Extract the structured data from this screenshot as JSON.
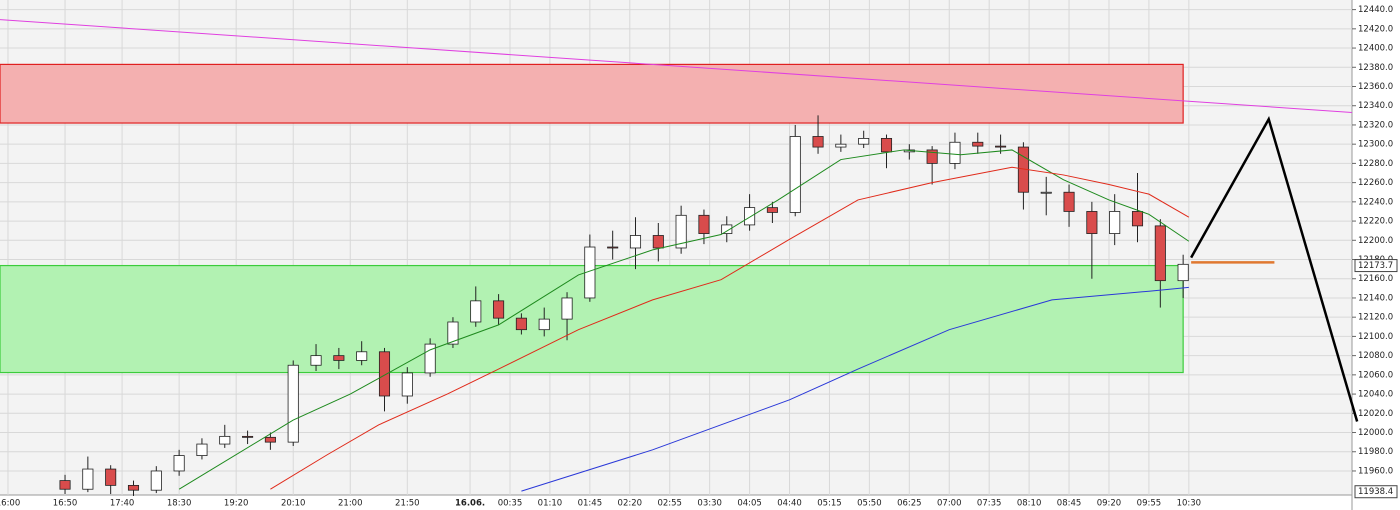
{
  "chart_data": {
    "type": "candlestick",
    "x": [
      10,
      14,
      18,
      22,
      26,
      30,
      34,
      38,
      42,
      46,
      50,
      54,
      58,
      62,
      66,
      70,
      74,
      78,
      82,
      86,
      90,
      94,
      98,
      102,
      106,
      110,
      114,
      118,
      122,
      126,
      130,
      134,
      138,
      142,
      146,
      150,
      154,
      158,
      162,
      166,
      170,
      174,
      178,
      182,
      186,
      190,
      194,
      198,
      202,
      206
    ],
    "open": [
      11950,
      11941,
      11962,
      11945,
      11940,
      11960,
      11976,
      11988,
      11996,
      11995,
      11990,
      12070,
      12080,
      12075,
      12084,
      12038,
      12062,
      12092,
      12115,
      12137,
      12119,
      12107,
      12118,
      12140,
      12193,
      12192,
      12205,
      12192,
      12226,
      12207,
      12216,
      12234,
      12229,
      12308,
      12297,
      12300,
      12306,
      12292,
      12294,
      12280,
      12302,
      12298,
      12297,
      12250,
      12250,
      12230,
      12207,
      12230,
      12215,
      12158
    ],
    "high": [
      11956,
      11975,
      11966,
      11950,
      11965,
      11982,
      11994,
      12008,
      12002,
      12000,
      12075,
      12092,
      12088,
      12095,
      12088,
      12068,
      12098,
      12120,
      12152,
      12144,
      12124,
      12130,
      12146,
      12206,
      12210,
      12224,
      12218,
      12236,
      12232,
      12225,
      12248,
      12240,
      12320,
      12330,
      12310,
      12314,
      12310,
      12300,
      12298,
      12312,
      12312,
      12310,
      12302,
      12266,
      12258,
      12240,
      12248,
      12270,
      12222,
      12185
    ],
    "low": [
      11936,
      11938,
      11936,
      11934,
      11937,
      11955,
      11972,
      11984,
      11988,
      11982,
      11986,
      12064,
      12066,
      12070,
      12022,
      12030,
      12058,
      12088,
      12110,
      12112,
      12102,
      12100,
      12096,
      12136,
      12180,
      12170,
      12178,
      12186,
      12196,
      12198,
      12210,
      12218,
      12225,
      12290,
      12292,
      12296,
      12275,
      12284,
      12258,
      12274,
      12290,
      12290,
      12232,
      12226,
      12214,
      12160,
      12195,
      12198,
      12130,
      12140
    ],
    "close": [
      11941,
      11962,
      11945,
      11940,
      11960,
      11976,
      11988,
      11996,
      11995,
      11990,
      12070,
      12080,
      12075,
      12084,
      12038,
      12062,
      12092,
      12115,
      12137,
      12119,
      12107,
      12118,
      12140,
      12193,
      12192,
      12205,
      12192,
      12226,
      12207,
      12216,
      12234,
      12229,
      12308,
      12297,
      12300,
      12306,
      12292,
      12294,
      12280,
      12302,
      12298,
      12297,
      12250,
      12250,
      12230,
      12207,
      12230,
      12215,
      12158,
      12175
    ],
    "up_color": "#ffffff",
    "down_color": "#d94c4c",
    "zones": [
      {
        "low": 12322,
        "high": 12383,
        "x_end": 206,
        "color": "#f4b0b0",
        "edge": "#e02020"
      },
      {
        "low": 12062.4,
        "high": 12173.7,
        "x_end": 206,
        "color": "#b2f2b2",
        "edge": "#3ccc3c"
      }
    ],
    "lines": [
      {
        "color": "#1e8a1e",
        "x": [
          30,
          50,
          60,
          74,
          86,
          100,
          113,
          125,
          135,
          146,
          157,
          167,
          176,
          185,
          193,
          200,
          207
        ],
        "values": [
          11941,
          12013,
          12040,
          12086,
          12112,
          12164,
          12190,
          12206,
          12242,
          12284,
          12294,
          12289,
          12294,
          12263,
          12242,
          12227,
          12199
        ]
      },
      {
        "color": "#e02a1a",
        "x": [
          46,
          56,
          65,
          77,
          86,
          100,
          113,
          125,
          137,
          149,
          162,
          176,
          185,
          193,
          200,
          207
        ],
        "values": [
          11941,
          11977,
          12008,
          12040,
          12066,
          12107,
          12138,
          12159,
          12201,
          12242,
          12260,
          12276,
          12268,
          12258,
          12248,
          12224
        ]
      },
      {
        "color": "#2a38d8",
        "x": [
          90,
          113,
          137,
          149,
          165,
          183,
          200,
          207
        ],
        "values": [
          11939,
          11982,
          12034,
          12066,
          12107,
          12138,
          12147,
          12151
        ]
      },
      {
        "color": "#e040e0",
        "x": [
          -1.4,
          235.6
        ],
        "values": [
          12429.6,
          12333
        ]
      },
      {
        "color": "#000000",
        "x": [
          207.4,
          221,
          236.5
        ],
        "values": [
          12182,
          12326,
          12011.5
        ]
      },
      {
        "color": "#e07830",
        "x": [
          207.4,
          222
        ],
        "values": [
          12177,
          12177
        ]
      }
    ],
    "price_markers": [
      12173.7,
      11938.4
    ],
    "xlim": [
      -1.4,
      235.6
    ],
    "xticks": [
      {
        "value": 0,
        "label": "16:00"
      },
      {
        "value": 10,
        "label": "16:50"
      },
      {
        "value": 20,
        "label": "17:40"
      },
      {
        "value": 30,
        "label": "18:30"
      },
      {
        "value": 40,
        "label": "19:20"
      },
      {
        "value": 50,
        "label": "20:10"
      },
      {
        "value": 60,
        "label": "21:00"
      },
      {
        "value": 70,
        "label": "21:50"
      },
      {
        "value": 81,
        "label": "16.06."
      },
      {
        "value": 88,
        "label": "00:35"
      },
      {
        "value": 95,
        "label": "01:10"
      },
      {
        "value": 102,
        "label": "01:45"
      },
      {
        "value": 109,
        "label": "02:20"
      },
      {
        "value": 116,
        "label": "02:55"
      },
      {
        "value": 123,
        "label": "03:30"
      },
      {
        "value": 130,
        "label": "04:05"
      },
      {
        "value": 137,
        "label": "04:40"
      },
      {
        "value": 144,
        "label": "05:15"
      },
      {
        "value": 151,
        "label": "05:50"
      },
      {
        "value": 158,
        "label": "06:25"
      },
      {
        "value": 165,
        "label": "07:00"
      },
      {
        "value": 172,
        "label": "07:35"
      },
      {
        "value": 179,
        "label": "08:10"
      },
      {
        "value": 186,
        "label": "08:45"
      },
      {
        "value": 193,
        "label": "09:20"
      },
      {
        "value": 200,
        "label": "09:55"
      },
      {
        "value": 207,
        "label": "10:30"
      }
    ],
    "ylim": [
      11935,
      12450
    ],
    "yticks": [
      {
        "value": 11960,
        "label": "11960.0"
      },
      {
        "value": 11980,
        "label": "11980.0"
      },
      {
        "value": 12000,
        "label": "12000.0"
      },
      {
        "value": 12020,
        "label": "12020.0"
      },
      {
        "value": 12040,
        "label": "12040.0"
      },
      {
        "value": 12060,
        "label": "12060.0"
      },
      {
        "value": 12080,
        "label": "12080.0"
      },
      {
        "value": 12100,
        "label": "12100.0"
      },
      {
        "value": 12120,
        "label": "12120.0"
      },
      {
        "value": 12140,
        "label": "12140.0"
      },
      {
        "value": 12160,
        "label": "12160.0"
      },
      {
        "value": 12180,
        "label": "12180.0"
      },
      {
        "value": 12200,
        "label": "12200.0"
      },
      {
        "value": 12220,
        "label": "12220.0"
      },
      {
        "value": 12240,
        "label": "12240.0"
      },
      {
        "value": 12260,
        "label": "12260.0"
      },
      {
        "value": 12280,
        "label": "12280.0"
      },
      {
        "value": 12300,
        "label": "12300.0"
      },
      {
        "value": 12320,
        "label": "12320.0"
      },
      {
        "value": 12340,
        "label": "12340.0"
      },
      {
        "value": 12360,
        "label": "12360.0"
      },
      {
        "value": 12380,
        "label": "12380.0"
      },
      {
        "value": 12400,
        "label": "12400.0"
      },
      {
        "value": 12420,
        "label": "12420.0"
      },
      {
        "value": 12440,
        "label": "12440.0"
      }
    ],
    "grid": true
  }
}
